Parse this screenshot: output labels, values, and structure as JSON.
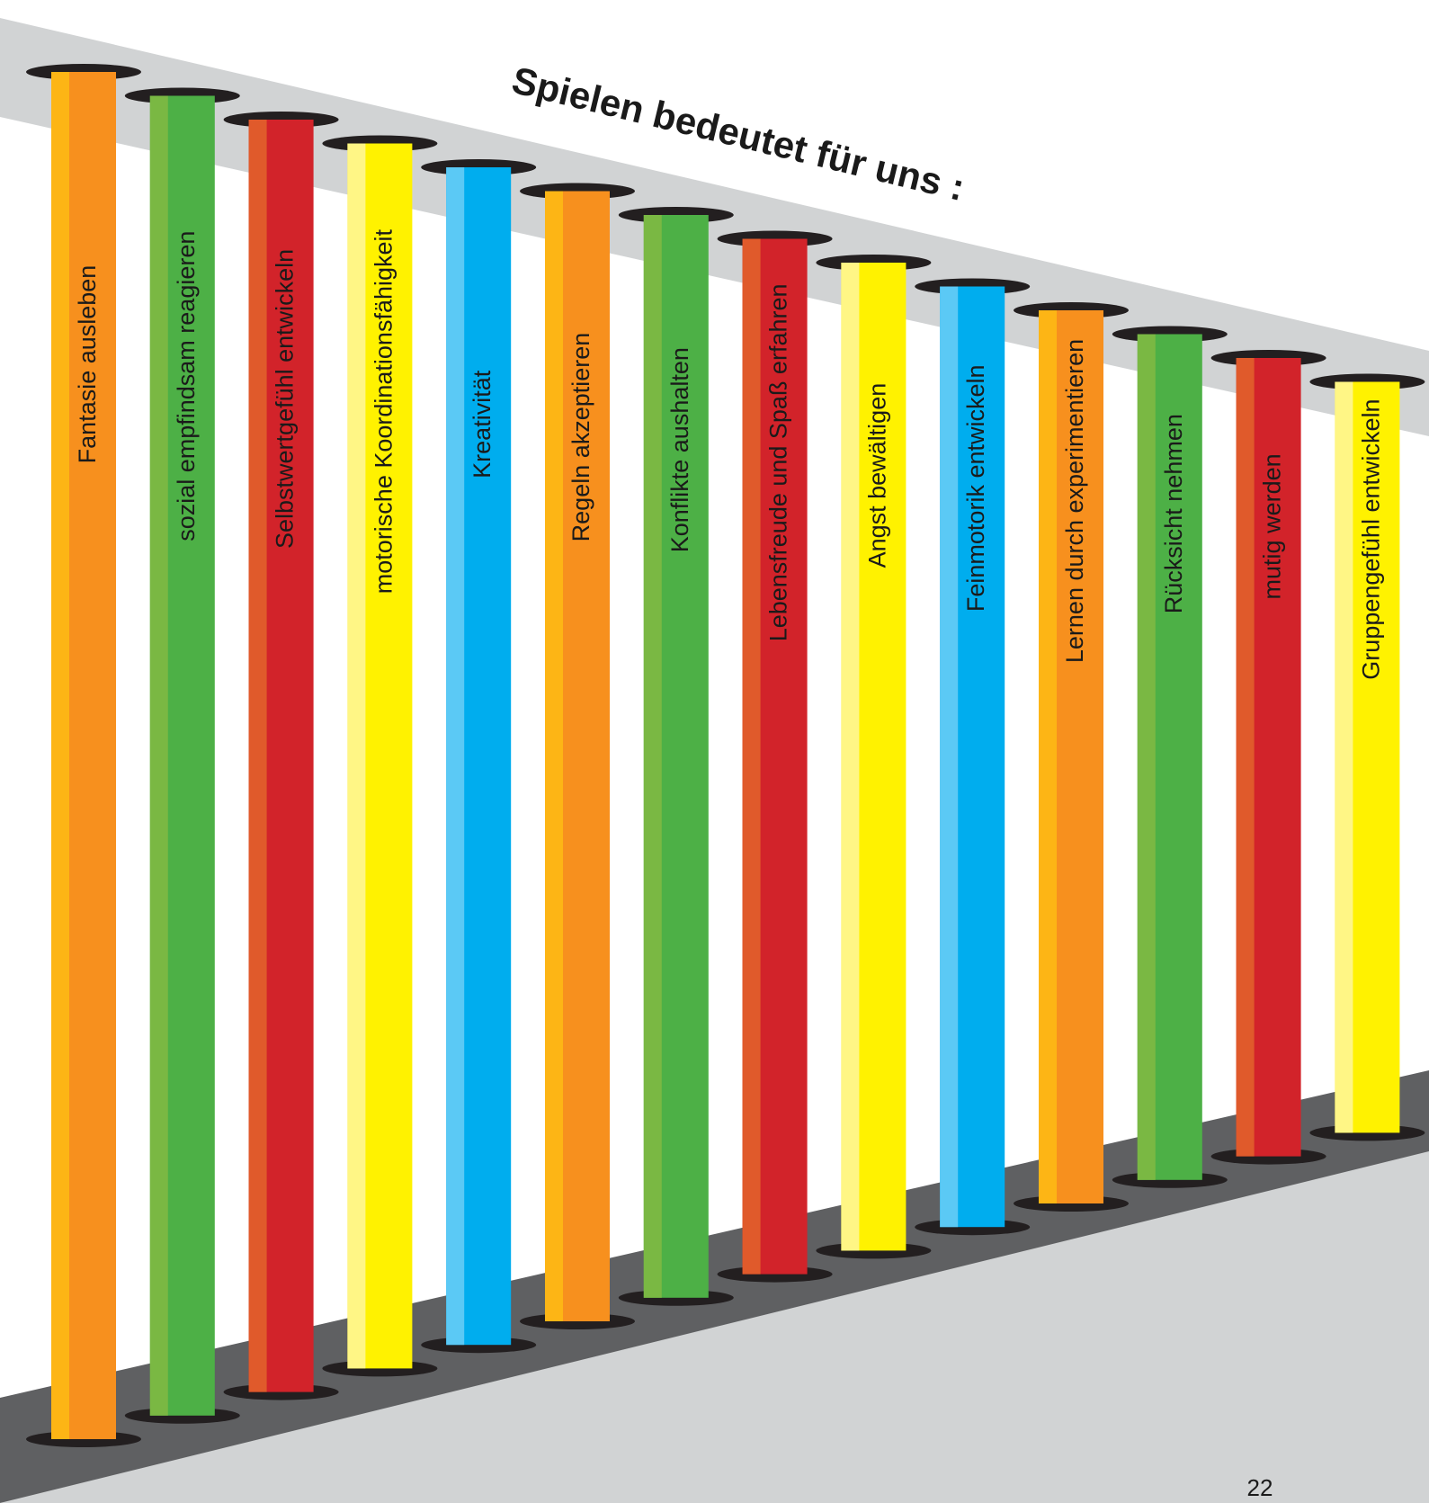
{
  "title": "Spielen bedeutet für uns :",
  "page_number": "22",
  "colors": {
    "ceiling_band": "#d1d3d4",
    "floor_shadow": "#5f6062",
    "floor": "#d1d3d4",
    "hole": "#231f20"
  },
  "pillars": [
    {
      "label": "Fantasie ausleben",
      "color": "#f7901e",
      "highlight": "#fdb515"
    },
    {
      "label": "sozial empfindsam reagieren",
      "color": "#4db046",
      "highlight": "#7ab843"
    },
    {
      "label": "Selbstwertgefühl entwickeln",
      "color": "#d2232a",
      "highlight": "#e05a2b"
    },
    {
      "label": "motorische Koordinationsfähigkeit",
      "color": "#fff200",
      "highlight": "#fff685"
    },
    {
      "label": "Kreativität",
      "color": "#00adee",
      "highlight": "#5bc9f5"
    },
    {
      "label": "Regeln akzeptieren",
      "color": "#f7901e",
      "highlight": "#fdb515"
    },
    {
      "label": "Konflikte aushalten",
      "color": "#4db046",
      "highlight": "#7ab843"
    },
    {
      "label": "Lebensfreude und Spaß erfahren",
      "color": "#d2232a",
      "highlight": "#e05a2b"
    },
    {
      "label": "Angst bewältigen",
      "color": "#fff200",
      "highlight": "#fff685"
    },
    {
      "label": "Feinmotorik entwickeln",
      "color": "#00adee",
      "highlight": "#5bc9f5"
    },
    {
      "label": "Lernen durch experimentieren",
      "color": "#f7901e",
      "highlight": "#fdb515"
    },
    {
      "label": "Rücksicht nehmen",
      "color": "#4db046",
      "highlight": "#7ab843"
    },
    {
      "label": "mutig werden",
      "color": "#d2232a",
      "highlight": "#e05a2b"
    },
    {
      "label": "Gruppengefühl entwickeln",
      "color": "#fff200",
      "highlight": "#fff685"
    }
  ]
}
